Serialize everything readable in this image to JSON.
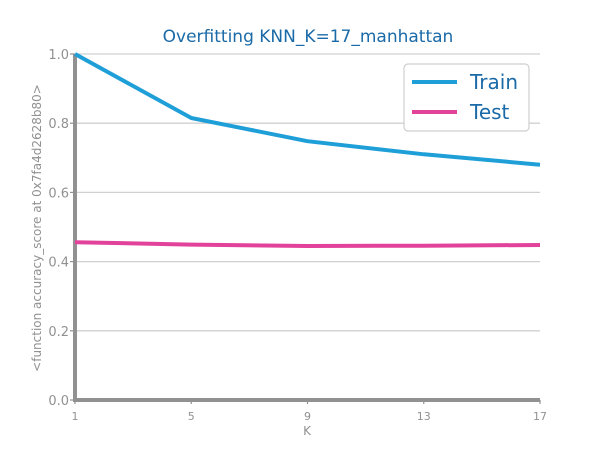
{
  "chart_data": {
    "type": "line",
    "title": "Overfitting KNN_K=17_manhattan",
    "xlabel": "K",
    "ylabel": "<function accuracy_score at 0x7fa4d2628b80>",
    "x": [
      1,
      5,
      9,
      13,
      17
    ],
    "x_ticks": [
      "1",
      "5",
      "9",
      "13",
      "17"
    ],
    "y_ticks": [
      "0.0",
      "0.2",
      "0.4",
      "0.6",
      "0.8",
      "1.0"
    ],
    "xlim": [
      1,
      17
    ],
    "ylim": [
      0.0,
      1.0
    ],
    "grid": "horizontal",
    "legend_position": "top-right",
    "series": [
      {
        "name": "Train",
        "color": "#1f9fd8",
        "values": [
          1.0,
          0.815,
          0.748,
          0.71,
          0.68
        ]
      },
      {
        "name": "Test",
        "color": "#e2429a",
        "values": [
          0.456,
          0.449,
          0.445,
          0.446,
          0.448
        ]
      }
    ],
    "colors": {
      "title": "#1a6aa8",
      "axis": "#919191",
      "grid": "#d0d0d0",
      "tick_label": "#919191"
    }
  }
}
